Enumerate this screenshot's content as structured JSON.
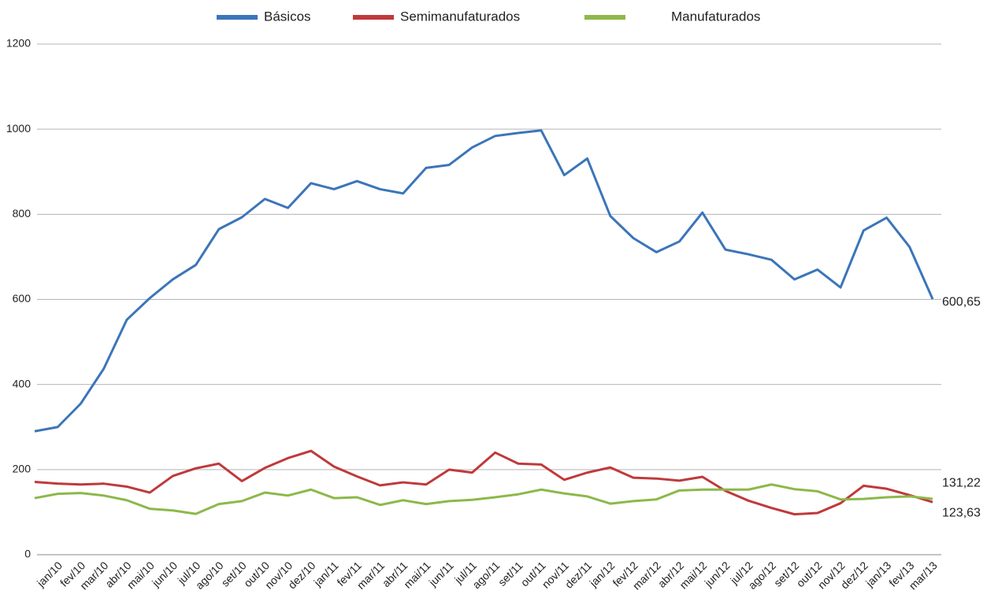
{
  "chart_data": {
    "type": "line",
    "categories": [
      null,
      "jan/10",
      "fev/10",
      "mar/10",
      "abr/10",
      "mai/10",
      "jun/10",
      "jul/10",
      "ago/10",
      "set/10",
      "out/10",
      "nov/10",
      "dez/10",
      "jan/11",
      "fev/11",
      "mar/11",
      "abr/11",
      "mai/11",
      "jun/11",
      "jul/11",
      "ago/11",
      "set/11",
      "out/11",
      "nov/11",
      "dez/11",
      "jan/12",
      "fev/12",
      "mar/12",
      "abr/12",
      "mai/12",
      "jun/12",
      "jul/12",
      "ago/12",
      "set/12",
      "out/12",
      "nov/12",
      "dez/12",
      "jan/13",
      "fev/13",
      "mar/13"
    ],
    "series": [
      {
        "name": "Básicos",
        "color": "#3b75b9",
        "values": [
          290,
          300,
          355,
          437,
          552,
          603,
          647,
          681,
          765,
          793,
          836,
          815,
          873,
          859,
          878,
          859,
          849,
          909,
          916,
          957,
          984,
          991,
          997,
          892,
          931,
          796,
          744,
          711,
          736,
          804,
          717,
          706,
          693,
          647,
          670,
          628,
          762,
          792,
          723,
          600.65
        ],
        "value_labels": [
          null,
          null,
          null,
          null,
          null,
          null,
          null,
          null,
          null,
          null,
          null,
          null,
          null,
          null,
          null,
          null,
          null,
          null,
          null,
          null,
          null,
          null,
          null,
          null,
          null,
          null,
          null,
          null,
          null,
          null,
          null,
          null,
          null,
          null,
          null,
          null,
          null,
          null,
          null,
          "600,65"
        ]
      },
      {
        "name": "Semimanufaturados",
        "color": "#c0393b",
        "values": [
          171,
          167,
          165,
          167,
          160,
          146,
          185,
          203,
          214,
          173,
          204,
          227,
          244,
          207,
          184,
          163,
          170,
          165,
          200,
          193,
          240,
          214,
          212,
          176,
          193,
          205,
          181,
          179,
          174,
          183,
          150,
          127,
          110,
          95,
          98,
          121,
          162,
          155,
          140,
          123.63
        ],
        "value_labels": [
          null,
          null,
          null,
          null,
          null,
          null,
          null,
          null,
          null,
          null,
          null,
          null,
          null,
          null,
          null,
          null,
          null,
          null,
          null,
          null,
          null,
          null,
          null,
          null,
          null,
          null,
          null,
          null,
          null,
          null,
          null,
          null,
          null,
          null,
          null,
          null,
          null,
          null,
          null,
          "123,63"
        ]
      },
      {
        "name": "Manufaturados",
        "color": "#8db84a",
        "values": [
          133,
          143,
          145,
          139,
          128,
          108,
          104,
          96,
          119,
          126,
          146,
          139,
          153,
          133,
          135,
          117,
          128,
          119,
          126,
          129,
          135,
          142,
          153,
          144,
          137,
          120,
          126,
          130,
          151,
          153,
          153,
          153,
          165,
          154,
          149,
          130,
          131,
          135,
          137,
          131.22
        ],
        "value_labels": [
          null,
          null,
          null,
          null,
          null,
          null,
          null,
          null,
          null,
          null,
          null,
          null,
          null,
          null,
          null,
          null,
          null,
          null,
          null,
          null,
          null,
          null,
          null,
          null,
          null,
          null,
          null,
          null,
          null,
          null,
          null,
          null,
          null,
          null,
          null,
          null,
          null,
          null,
          null,
          "131,22"
        ]
      }
    ],
    "ylim": [
      0,
      1200
    ],
    "yticks": [
      0,
      200,
      400,
      600,
      800,
      1000,
      1200
    ],
    "grid": true,
    "legend": "top"
  }
}
